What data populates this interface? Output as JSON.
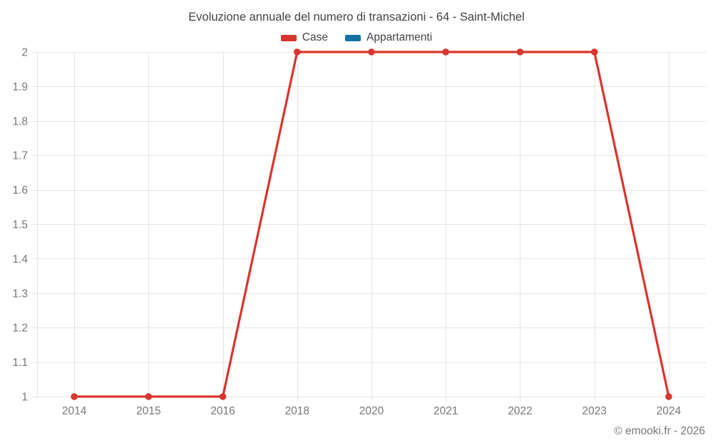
{
  "chart_data": {
    "type": "line",
    "title": "Evoluzione annuale del numero di transazioni - 64 - Saint-Michel",
    "categories": [
      "2014",
      "2015",
      "2016",
      "2018",
      "2020",
      "2021",
      "2022",
      "2023",
      "2024"
    ],
    "series": [
      {
        "name": "Case",
        "color": "#d8352f",
        "values": [
          1,
          1,
          1,
          2,
          2,
          2,
          2,
          2,
          1
        ]
      },
      {
        "name": "Appartamenti",
        "color": "#1272a6",
        "values": []
      }
    ],
    "xlabel": "",
    "ylabel": "",
    "ylim": [
      1,
      2
    ],
    "ytick_step": 0.1,
    "yticks": [
      "2",
      "1.9",
      "1.8",
      "1.7",
      "1.6",
      "1.5",
      "1.4",
      "1.3",
      "1.2",
      "1.1",
      "1"
    ],
    "grid": true,
    "legend_position": "top"
  },
  "footer": {
    "copyright": "© emooki.fr - 2026"
  },
  "colors": {
    "background": "#ffffff",
    "grid": "#e4e4e4",
    "axis_label": "#757779",
    "title": "#3f4347",
    "case_red": "#d8352f",
    "appartamenti_blue": "#1272a6"
  }
}
